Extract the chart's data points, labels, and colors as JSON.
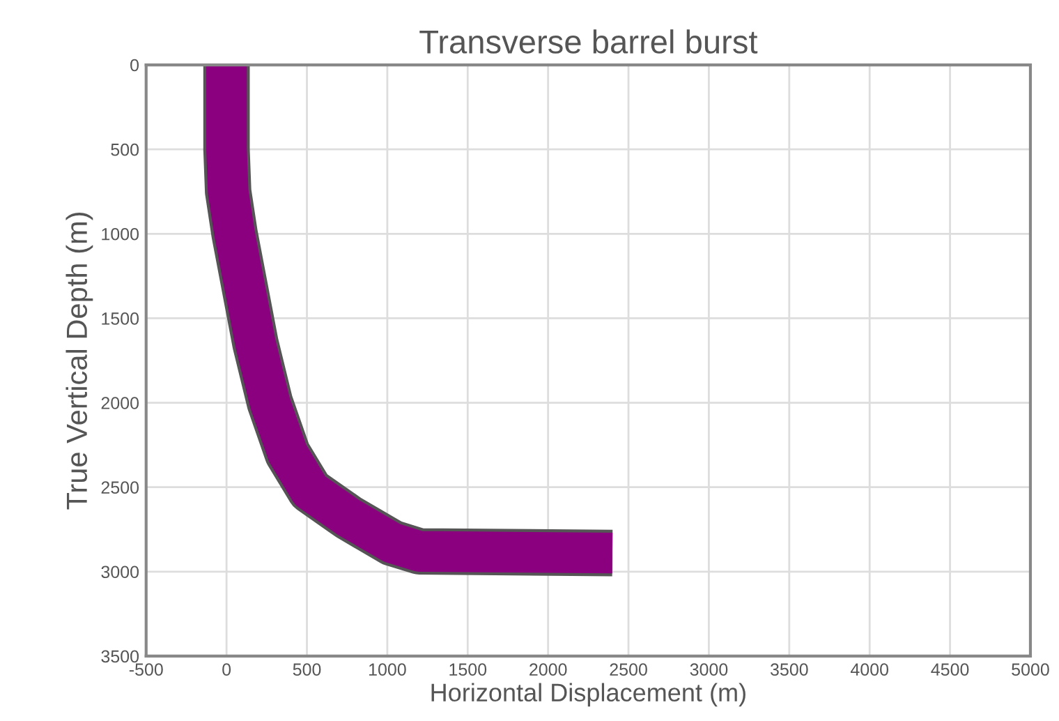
{
  "chart_data": {
    "type": "line",
    "title": "Transverse barrel burst",
    "xlabel": "Horizontal Displacement (m)",
    "ylabel": "True Vertical Depth (m)",
    "series": [
      {
        "color": "#8b007f",
        "x": [
          0,
          0,
          10,
          50,
          110,
          180,
          270,
          380,
          520,
          760,
          1030,
          1200,
          2400
        ],
        "values": [
          0,
          500,
          750,
          1000,
          1300,
          1650,
          2000,
          2300,
          2520,
          2680,
          2830,
          2880,
          2890
        ]
      }
    ],
    "xlim": [
      -500,
      5000
    ],
    "xticks": [
      -500,
      0,
      500,
      1000,
      1500,
      2000,
      2500,
      3000,
      3500,
      4000,
      4500,
      5000
    ],
    "ylim": [
      3500,
      0
    ],
    "yticks": [
      0,
      500,
      1000,
      1500,
      2000,
      2500,
      3000,
      3500
    ],
    "grid": true,
    "legend": false,
    "marker": "none",
    "line_style": "solid"
  }
}
